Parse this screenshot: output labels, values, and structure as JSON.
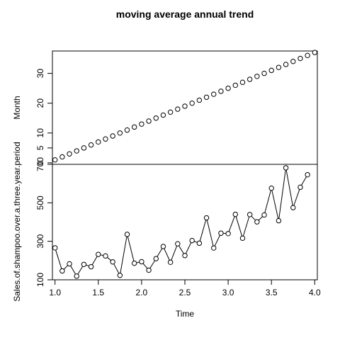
{
  "chart_data": {
    "type": "line",
    "title": "moving average annual trend",
    "xlabel": "Time",
    "xlim": [
      0.97,
      4.03
    ],
    "xticks": [
      1.0,
      1.5,
      2.0,
      2.5,
      3.0,
      3.5,
      4.0
    ],
    "xtick_labels": [
      "1.0",
      "1.5",
      "2.0",
      "2.5",
      "3.0",
      "3.5",
      "4.0"
    ],
    "panels": [
      {
        "ylabel": "Month",
        "ylim": [
          -0.5,
          37.5
        ],
        "yticks": [
          0,
          5,
          10,
          20,
          30
        ],
        "ytick_labels": [
          "0",
          "5",
          "10",
          "20",
          "30"
        ],
        "style": "points",
        "x": [
          1.0,
          1.0833,
          1.1667,
          1.25,
          1.3333,
          1.4167,
          1.5,
          1.5833,
          1.6667,
          1.75,
          1.8333,
          1.9167,
          2.0,
          2.0833,
          2.1667,
          2.25,
          2.3333,
          2.4167,
          2.5,
          2.5833,
          2.6667,
          2.75,
          2.8333,
          2.9167,
          3.0,
          3.0833,
          3.1667,
          3.25,
          3.3333,
          3.4167,
          3.5,
          3.5833,
          3.6667,
          3.75,
          3.8333,
          3.9167,
          4.0
        ],
        "y": [
          1,
          2,
          3,
          4,
          5,
          6,
          7,
          8,
          9,
          10,
          11,
          12,
          13,
          14,
          15,
          16,
          17,
          18,
          19,
          20,
          21,
          22,
          23,
          24,
          25,
          26,
          27,
          28,
          29,
          30,
          31,
          32,
          33,
          34,
          35,
          36,
          37
        ]
      },
      {
        "ylabel": "Sales.of.shampoo.over.a.three.year.period",
        "ylim": [
          100,
          700
        ],
        "yticks": [
          100,
          300,
          500,
          700
        ],
        "ytick_labels": [
          "100",
          "300",
          "500",
          "700"
        ],
        "style": "both",
        "x": [
          1.0,
          1.0833,
          1.1667,
          1.25,
          1.3333,
          1.4167,
          1.5,
          1.5833,
          1.6667,
          1.75,
          1.8333,
          1.9167,
          2.0,
          2.0833,
          2.1667,
          2.25,
          2.3333,
          2.4167,
          2.5,
          2.5833,
          2.6667,
          2.75,
          2.8333,
          2.9167,
          3.0,
          3.0833,
          3.1667,
          3.25,
          3.3333,
          3.4167,
          3.5,
          3.5833,
          3.6667,
          3.75,
          3.8333,
          3.9167
        ],
        "y": [
          266,
          146,
          183,
          119,
          180,
          168,
          232,
          224,
          193,
          123,
          336,
          186,
          194,
          150,
          210,
          273,
          191,
          287,
          226,
          304,
          290,
          422,
          265,
          342,
          340,
          440,
          316,
          439,
          401,
          437,
          576,
          407,
          682,
          475,
          581,
          646
        ]
      }
    ]
  }
}
